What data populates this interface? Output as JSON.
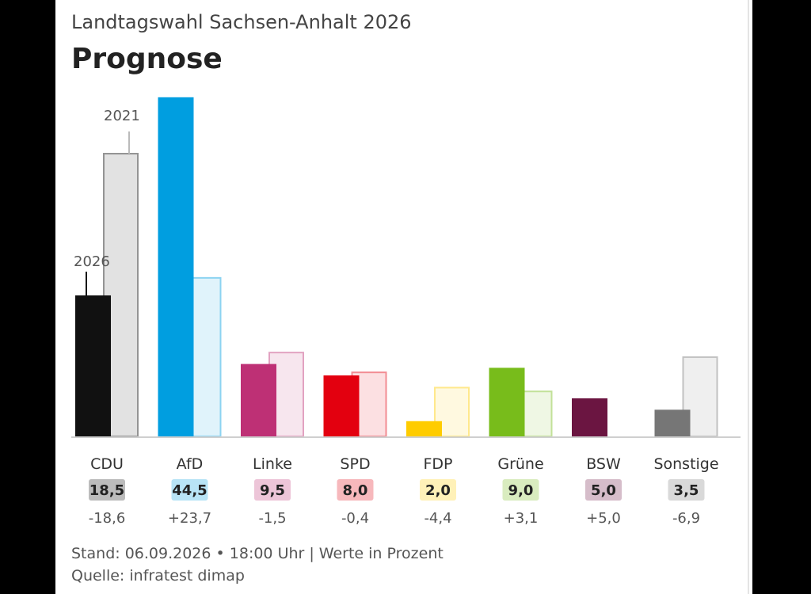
{
  "header": {
    "subtitle": "Landtagswahl Sachsen-Anhalt 2026",
    "title": "Prognose"
  },
  "chart_data": {
    "type": "bar",
    "categories": [
      "CDU",
      "AfD",
      "Linke",
      "SPD",
      "FDP",
      "Grüne",
      "BSW",
      "Sonstige"
    ],
    "series": [
      {
        "name": "2026",
        "values": [
          18.5,
          44.5,
          9.5,
          8.0,
          2.0,
          9.0,
          5.0,
          3.5
        ]
      },
      {
        "name": "2021",
        "values": [
          37.1,
          20.8,
          11.0,
          8.4,
          6.4,
          5.9,
          0,
          10.4
        ]
      }
    ],
    "value_labels": [
      "18,5",
      "44,5",
      "9,5",
      "8,0",
      "2,0",
      "9,0",
      "5,0",
      "3,5"
    ],
    "diff_labels": [
      "-18,6",
      "+23,7",
      "-1,5",
      "-0,4",
      "-4,4",
      "+3,1",
      "+5,0",
      "-6,9"
    ],
    "colors": [
      "#111111",
      "#009ee0",
      "#be3075",
      "#e3000f",
      "#ffcc00",
      "#78bc1b",
      "#6b1541",
      "#767676"
    ],
    "ylim": [
      0,
      45
    ],
    "grid": false,
    "legend": "inline-annotations"
  },
  "footer": {
    "line1": "Stand: 06.09.2026 • 18:00 Uhr | Werte in Prozent",
    "line2": "Quelle: infratest dimap"
  }
}
